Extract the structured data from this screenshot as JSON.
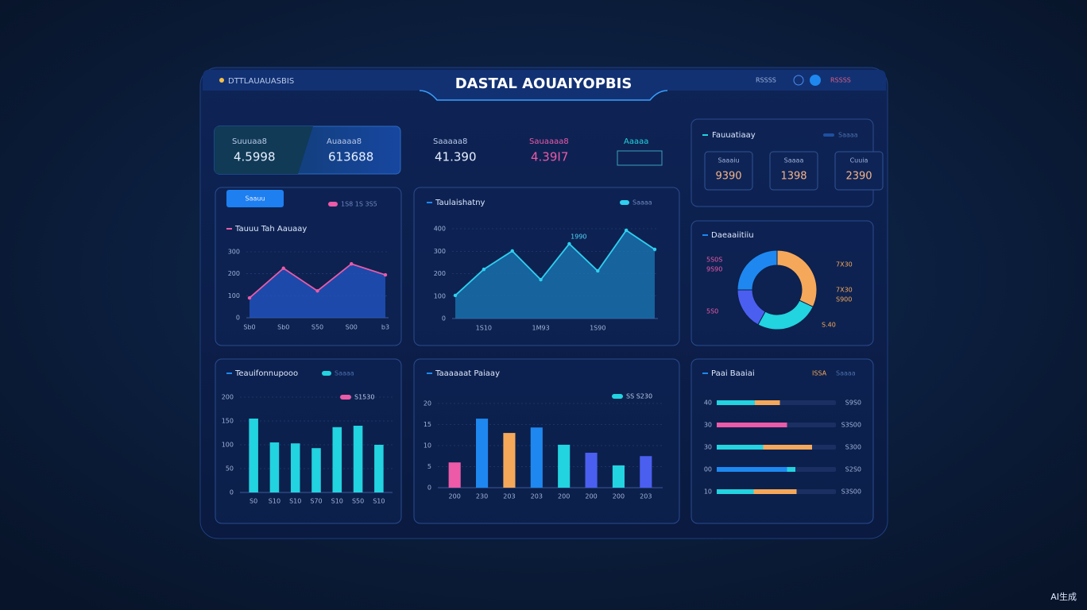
{
  "header": {
    "brand": "DTTLAUAUASBIS",
    "title": "DASTAL AOUAIYOPBIS",
    "status": "RSSSS",
    "menu": "RSSSS"
  },
  "kpis": [
    {
      "label": "Suuuaa8",
      "value": "4.5998"
    },
    {
      "label": "Auaaaa8",
      "value": "613688"
    },
    {
      "label": "Saaaaa8",
      "value": "41.390"
    },
    {
      "label": "Sauaaaa8",
      "value": "4.39I7"
    },
    {
      "label": "Aaaaa"
    }
  ],
  "summary": {
    "title": "Fauuatiaay",
    "tag": "Saaaa",
    "stats": [
      {
        "label": "Saaaiu",
        "value": "9390"
      },
      {
        "label": "Saaaa",
        "value": "1398"
      },
      {
        "label": "Cuuia",
        "value": "2390"
      }
    ]
  },
  "chart_data": [
    {
      "type": "area",
      "title": "Tauuu Tah Aauaay",
      "button": "Saauu",
      "categories": [
        "Sb0",
        "Sb0",
        "S50",
        "S00",
        "b3"
      ],
      "series": [
        {
          "name": "1S8 1S 3S5",
          "color": "#ec5aa8",
          "values": [
            90,
            225,
            122,
            245,
            195
          ]
        }
      ],
      "area_color": "#2357c8",
      "ylim": [
        0,
        300
      ],
      "yticks": [
        0,
        100,
        200,
        300
      ]
    },
    {
      "type": "area",
      "title": "Taulaishatny",
      "categories": [
        null,
        "1S10",
        null,
        "1M93",
        null,
        "1S90",
        null,
        null
      ],
      "series": [
        {
          "name": "Saaaa",
          "color": "#2fd0f0",
          "values": [
            103,
            219,
            301,
            173,
            333,
            212,
            393,
            308
          ]
        }
      ],
      "area_color": "#1a7ab8",
      "annotation": "1990",
      "ylim": [
        0,
        400
      ],
      "yticks": [
        0,
        100,
        200,
        300,
        400
      ]
    },
    {
      "type": "donut",
      "title": "Daeaaiitiiu",
      "values": [
        32,
        26,
        17,
        25
      ],
      "colors": [
        "#f5a85a",
        "#22d3e0",
        "#4a5ff0",
        "#1e88f0"
      ],
      "annotations": [
        "5S0S",
        "9S90",
        "7X30",
        "7X30",
        "S900",
        "5S0",
        "S.40"
      ]
    },
    {
      "type": "bar",
      "title": "Teauifonnupooo",
      "note": "S1530",
      "note_color": "#ec5aa8",
      "categories": [
        "S0",
        "S10",
        "S10",
        "S70",
        "S10",
        "S50",
        "S10"
      ],
      "series": [
        {
          "name": "Saaaa",
          "color": "#22d3e0",
          "values": [
            155,
            105,
            103,
            93,
            137,
            140,
            100
          ]
        }
      ],
      "ylim": [
        0,
        200
      ],
      "yticks": [
        0,
        50,
        100,
        150,
        200
      ]
    },
    {
      "type": "bar",
      "title": "Taaaaaat Paiaay",
      "note": "SS S230",
      "note_color": "#22d3e0",
      "categories": [
        "200",
        "230",
        "203",
        "203",
        "200",
        "200",
        "200",
        "203"
      ],
      "values": [
        6.0,
        16.4,
        13.0,
        14.3,
        10.2,
        8.3,
        5.3,
        7.5
      ],
      "colors": [
        "#ec5aa8",
        "#1e88f0",
        "#f5a85a",
        "#1e88f0",
        "#22d3e0",
        "#4a5ff0",
        "#22d3e0",
        "#4a5ff0"
      ],
      "ylim": [
        0,
        20
      ],
      "yticks": [
        0,
        5,
        10,
        15,
        20
      ]
    },
    {
      "type": "hbar",
      "title": "Paai Baaiai",
      "categories": [
        "40",
        "30",
        "30",
        "00",
        "10"
      ],
      "series": [
        {
          "name": "Saaaa",
          "colors": [
            "#22d3e0",
            "#ec5aa8",
            "#22d3e0",
            "#1e88f0",
            "#22d3e0"
          ],
          "values": [
            32,
            59,
            39,
            59,
            31
          ]
        },
        {
          "name": "ISSA",
          "colors": [
            "#f5a85a",
            "#f5a85a",
            "#f5a85a",
            "#22d3e0",
            "#f5a85a"
          ],
          "values": [
            21,
            0,
            41,
            7,
            36
          ]
        }
      ],
      "row_notes": [
        "S9S0",
        "S3S00",
        "S300",
        "S2S0",
        "S3S00"
      ],
      "xlim": [
        0,
        100
      ]
    }
  ],
  "watermark": "AI生成"
}
